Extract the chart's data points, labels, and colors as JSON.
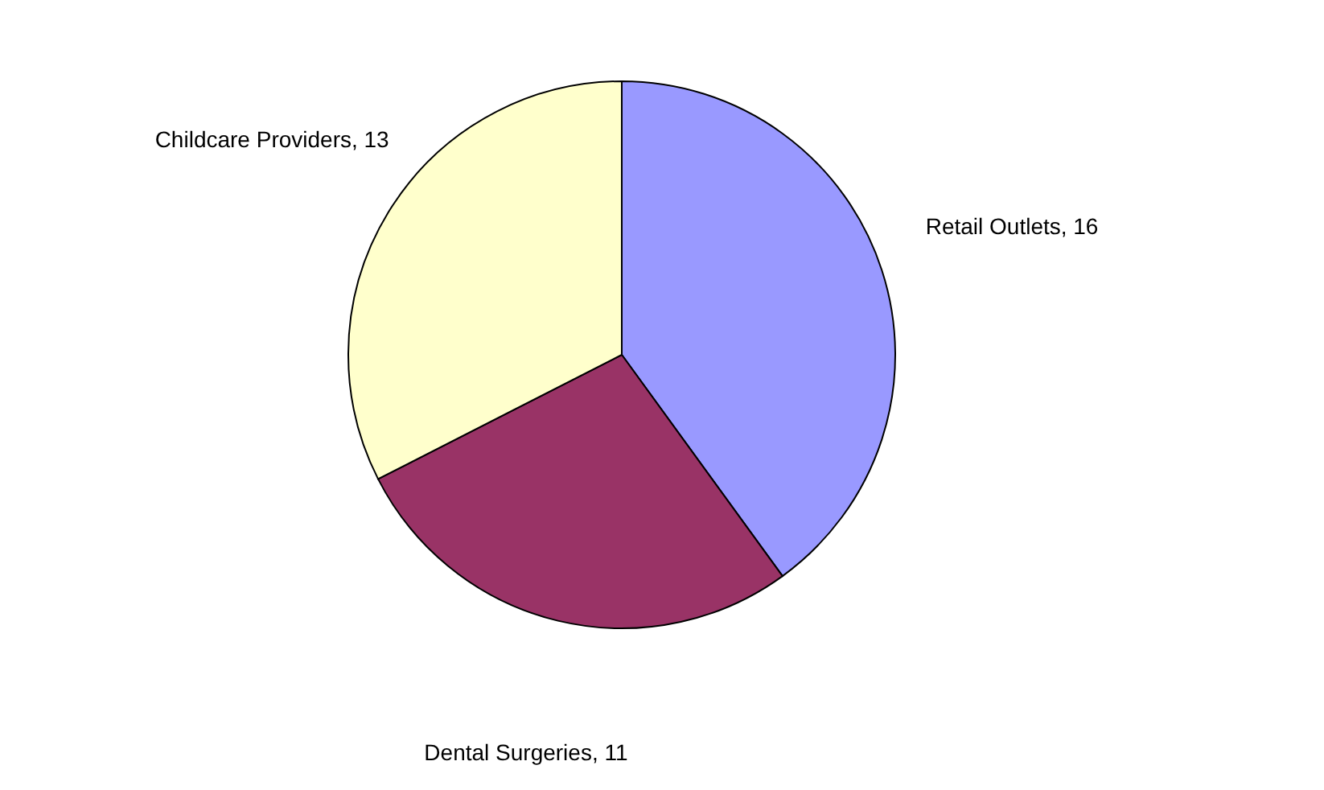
{
  "chart_data": {
    "type": "pie",
    "categories": [
      "Retail Outlets",
      "Dental Surgeries",
      "Childcare Providers"
    ],
    "values": [
      16,
      11,
      13
    ],
    "value_labels": [
      ", 16",
      ", 11",
      ", 13"
    ],
    "colors": [
      "#9999ff",
      "#993366",
      "#ffffcc"
    ],
    "legend": false
  }
}
